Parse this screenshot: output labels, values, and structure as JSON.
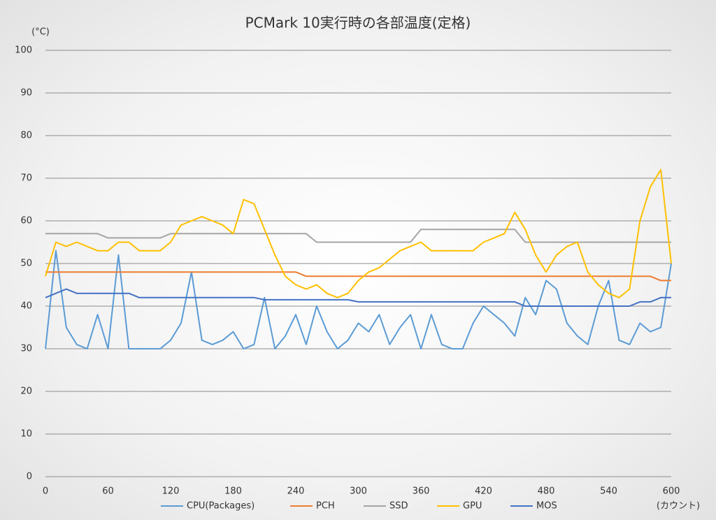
{
  "chart_data": {
    "type": "line",
    "title": "PCMark 10実行時の各部温度(定格)",
    "y_label": "(°C)",
    "x_label": "(カウント)",
    "x": [
      0,
      10,
      20,
      30,
      40,
      50,
      60,
      70,
      80,
      90,
      100,
      110,
      120,
      130,
      140,
      150,
      160,
      170,
      180,
      190,
      200,
      210,
      220,
      230,
      240,
      250,
      260,
      270,
      280,
      290,
      300,
      310,
      320,
      330,
      340,
      350,
      360,
      370,
      380,
      390,
      400,
      410,
      420,
      430,
      440,
      450,
      460,
      470,
      480,
      490,
      500,
      510,
      520,
      530,
      540,
      550,
      560,
      570,
      580,
      590,
      600
    ],
    "xlim": [
      0,
      600
    ],
    "xticks": [
      0,
      60,
      120,
      180,
      240,
      300,
      360,
      420,
      480,
      540,
      600
    ],
    "ylim": [
      0,
      100
    ],
    "yticks": [
      0,
      10,
      20,
      30,
      40,
      50,
      60,
      70,
      80,
      90,
      100
    ],
    "grid": true,
    "series": [
      {
        "name": "CPU(Packages)",
        "color": "#5b9bd5",
        "values": [
          30,
          53,
          35,
          31,
          30,
          38,
          30,
          52,
          30,
          30,
          30,
          30,
          32,
          36,
          48,
          32,
          31,
          32,
          34,
          30,
          31,
          42,
          30,
          33,
          38,
          31,
          40,
          34,
          30,
          32,
          36,
          34,
          38,
          31,
          35,
          38,
          30,
          38,
          31,
          30,
          30,
          36,
          40,
          38,
          36,
          33,
          42,
          38,
          46,
          44,
          36,
          33,
          31,
          40,
          46,
          32,
          31,
          36,
          34,
          35,
          50
        ]
      },
      {
        "name": "PCH",
        "color": "#ed7d31",
        "values": [
          48,
          48,
          48,
          48,
          48,
          48,
          48,
          48,
          48,
          48,
          48,
          48,
          48,
          48,
          48,
          48,
          48,
          48,
          48,
          48,
          48,
          48,
          48,
          48,
          48,
          47,
          47,
          47,
          47,
          47,
          47,
          47,
          47,
          47,
          47,
          47,
          47,
          47,
          47,
          47,
          47,
          47,
          47,
          47,
          47,
          47,
          47,
          47,
          47,
          47,
          47,
          47,
          47,
          47,
          47,
          47,
          47,
          47,
          47,
          46,
          46
        ]
      },
      {
        "name": "SSD",
        "color": "#a5a5a5",
        "values": [
          57,
          57,
          57,
          57,
          57,
          57,
          56,
          56,
          56,
          56,
          56,
          56,
          57,
          57,
          57,
          57,
          57,
          57,
          57,
          57,
          57,
          57,
          57,
          57,
          57,
          57,
          55,
          55,
          55,
          55,
          55,
          55,
          55,
          55,
          55,
          55,
          58,
          58,
          58,
          58,
          58,
          58,
          58,
          58,
          58,
          58,
          55,
          55,
          55,
          55,
          55,
          55,
          55,
          55,
          55,
          55,
          55,
          55,
          55,
          55,
          55
        ]
      },
      {
        "name": "GPU",
        "color": "#ffc000",
        "values": [
          47,
          55,
          54,
          55,
          54,
          53,
          53,
          55,
          55,
          53,
          53,
          53,
          55,
          59,
          60,
          61,
          60,
          59,
          57,
          65,
          64,
          58,
          52,
          47,
          45,
          44,
          45,
          43,
          42,
          43,
          46,
          48,
          49,
          51,
          53,
          54,
          55,
          53,
          53,
          53,
          53,
          53,
          55,
          56,
          57,
          62,
          58,
          52,
          48,
          52,
          54,
          55,
          48,
          45,
          43,
          42,
          44,
          60,
          68,
          72,
          50
        ]
      },
      {
        "name": "MOS",
        "color": "#4472c4",
        "values": [
          42,
          43,
          44,
          43,
          43,
          43,
          43,
          43,
          43,
          42,
          42,
          42,
          42,
          42,
          42,
          42,
          42,
          42,
          42,
          42,
          42,
          41.5,
          41.5,
          41.5,
          41.5,
          41.5,
          41.5,
          41.5,
          41.5,
          41.5,
          41,
          41,
          41,
          41,
          41,
          41,
          41,
          41,
          41,
          41,
          41,
          41,
          41,
          41,
          41,
          41,
          40,
          40,
          40,
          40,
          40,
          40,
          40,
          40,
          40,
          40,
          40,
          41,
          41,
          42,
          42
        ]
      }
    ]
  }
}
